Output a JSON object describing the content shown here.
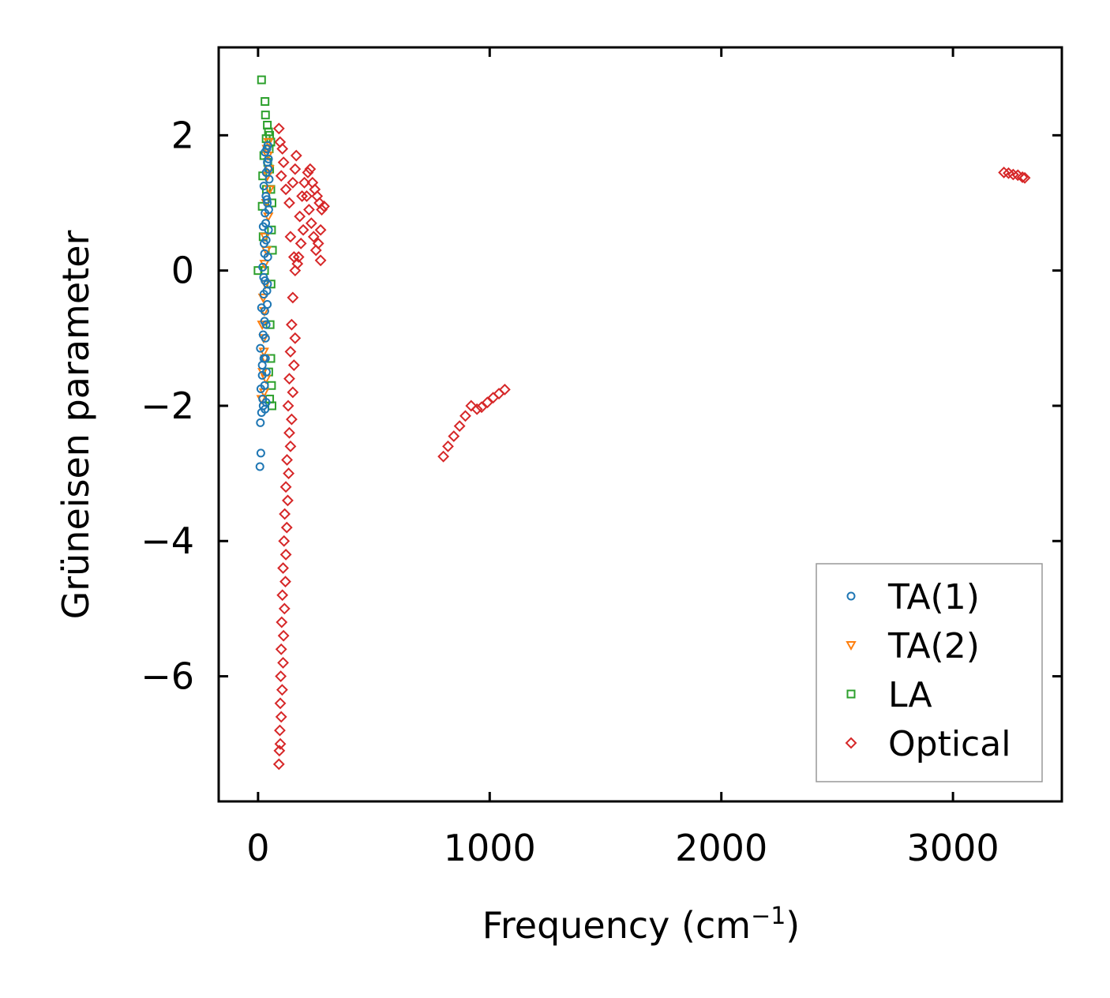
{
  "chart_data": {
    "type": "scatter",
    "title": "",
    "xlabel": "Frequency (cm",
    "xlabel_sup": "−1",
    "xlabel_close": ")",
    "ylabel": "Grüneisen parameter",
    "xlim": [
      -170,
      3470
    ],
    "ylim": [
      -7.85,
      3.3
    ],
    "xticks": [
      0,
      1000,
      2000,
      3000
    ],
    "xtick_labels": [
      "0",
      "1000",
      "2000",
      "3000"
    ],
    "yticks": [
      -6,
      -4,
      -2,
      0,
      2
    ],
    "ytick_labels": [
      "−6",
      "−4",
      "−2",
      "0",
      "2"
    ],
    "grid": false,
    "legend_position": "lower-right",
    "series": [
      {
        "name": "TA(1)",
        "marker": "circle",
        "color": "#1f77b4",
        "points": [
          [
            8,
            -2.9
          ],
          [
            12,
            -2.7
          ],
          [
            10,
            -2.25
          ],
          [
            15,
            -2.1
          ],
          [
            20,
            -1.9
          ],
          [
            12,
            -1.75
          ],
          [
            18,
            -1.55
          ],
          [
            25,
            -1.3
          ],
          [
            10,
            -1.15
          ],
          [
            22,
            -0.95
          ],
          [
            28,
            -0.75
          ],
          [
            15,
            -0.55
          ],
          [
            25,
            -0.35
          ],
          [
            30,
            -0.15
          ],
          [
            20,
            0.05
          ],
          [
            28,
            0.25
          ],
          [
            35,
            0.45
          ],
          [
            22,
            0.65
          ],
          [
            30,
            0.85
          ],
          [
            38,
            1.05
          ],
          [
            25,
            1.25
          ],
          [
            35,
            1.45
          ],
          [
            40,
            1.6
          ],
          [
            30,
            1.75
          ],
          [
            42,
            1.85
          ],
          [
            45,
            1.65
          ],
          [
            48,
            1.35
          ],
          [
            40,
            1.0
          ],
          [
            45,
            0.6
          ],
          [
            42,
            0.2
          ],
          [
            38,
            -0.3
          ],
          [
            35,
            -0.8
          ],
          [
            32,
            -1.3
          ],
          [
            28,
            -1.7
          ],
          [
            35,
            -1.95
          ],
          [
            30,
            -2.05
          ],
          [
            22,
            -2.0
          ],
          [
            18,
            -1.4
          ],
          [
            40,
            -0.5
          ],
          [
            46,
            0.9
          ],
          [
            34,
            1.1
          ],
          [
            26,
            0.4
          ],
          [
            24,
            -0.1
          ],
          [
            32,
            -1.0
          ],
          [
            36,
            -1.5
          ],
          [
            44,
            1.5
          ],
          [
            38,
            1.8
          ],
          [
            33,
            0.7
          ],
          [
            29,
            -0.6
          ],
          [
            41,
            -0.2
          ]
        ]
      },
      {
        "name": "TA(2)",
        "marker": "triangle-down",
        "color": "#ff7f0e",
        "points": [
          [
            15,
            -1.9
          ],
          [
            20,
            -1.5
          ],
          [
            25,
            -1.2
          ],
          [
            18,
            -0.8
          ],
          [
            22,
            -0.4
          ],
          [
            28,
            0.1
          ],
          [
            30,
            0.5
          ],
          [
            35,
            1.0
          ],
          [
            40,
            1.4
          ],
          [
            42,
            1.7
          ],
          [
            45,
            1.9
          ],
          [
            38,
            1.8
          ],
          [
            48,
            1.5
          ],
          [
            50,
            1.2
          ],
          [
            44,
            0.8
          ],
          [
            36,
            0.3
          ],
          [
            32,
            -0.2
          ],
          [
            27,
            -0.6
          ],
          [
            24,
            -1.0
          ],
          [
            30,
            -1.3
          ],
          [
            34,
            -1.6
          ],
          [
            26,
            -1.8
          ]
        ]
      },
      {
        "name": "LA",
        "marker": "square",
        "color": "#2ca02c",
        "points": [
          [
            15,
            2.82
          ],
          [
            30,
            2.5
          ],
          [
            32,
            2.3
          ],
          [
            40,
            2.15
          ],
          [
            45,
            2.05
          ],
          [
            50,
            2.0
          ],
          [
            55,
            1.9
          ],
          [
            35,
            1.95
          ],
          [
            25,
            1.7
          ],
          [
            20,
            1.4
          ],
          [
            18,
            0.95
          ],
          [
            22,
            0.5
          ],
          [
            28,
            0.0
          ],
          [
            50,
            1.5
          ],
          [
            55,
            1.2
          ],
          [
            60,
            1.0
          ],
          [
            58,
            0.6
          ],
          [
            62,
            0.3
          ],
          [
            56,
            -0.2
          ],
          [
            52,
            -0.8
          ],
          [
            55,
            -1.3
          ],
          [
            58,
            -1.7
          ],
          [
            60,
            -2.0
          ],
          [
            50,
            -1.9
          ],
          [
            46,
            -1.5
          ],
          [
            48,
            1.8
          ],
          [
            42,
            1.6
          ],
          [
            36,
            1.2
          ],
          [
            0,
            0.0
          ]
        ]
      },
      {
        "name": "Optical",
        "marker": "diamond",
        "color": "#d62728",
        "points": [
          [
            90,
            2.1
          ],
          [
            95,
            1.9
          ],
          [
            110,
            1.6
          ],
          [
            105,
            1.8
          ],
          [
            100,
            1.4
          ],
          [
            120,
            1.2
          ],
          [
            135,
            1.0
          ],
          [
            150,
            1.3
          ],
          [
            160,
            1.5
          ],
          [
            165,
            1.7
          ],
          [
            140,
            0.5
          ],
          [
            155,
            0.2
          ],
          [
            170,
            0.1
          ],
          [
            180,
            0.8
          ],
          [
            190,
            1.1
          ],
          [
            200,
            1.3
          ],
          [
            215,
            1.45
          ],
          [
            225,
            1.5
          ],
          [
            235,
            1.3
          ],
          [
            245,
            1.2
          ],
          [
            255,
            1.1
          ],
          [
            265,
            1.0
          ],
          [
            275,
            0.9
          ],
          [
            285,
            0.95
          ],
          [
            270,
            0.6
          ],
          [
            260,
            0.4
          ],
          [
            250,
            0.3
          ],
          [
            240,
            0.5
          ],
          [
            230,
            0.7
          ],
          [
            220,
            0.9
          ],
          [
            210,
            1.1
          ],
          [
            195,
            0.6
          ],
          [
            185,
            0.4
          ],
          [
            175,
            0.2
          ],
          [
            270,
            0.15
          ],
          [
            160,
            0.0
          ],
          [
            150,
            -0.4
          ],
          [
            145,
            -0.8
          ],
          [
            140,
            -1.2
          ],
          [
            135,
            -1.6
          ],
          [
            130,
            -2.0
          ],
          [
            135,
            -2.4
          ],
          [
            140,
            -2.6
          ],
          [
            145,
            -2.2
          ],
          [
            150,
            -1.8
          ],
          [
            155,
            -1.4
          ],
          [
            160,
            -1.0
          ],
          [
            125,
            -2.8
          ],
          [
            120,
            -3.2
          ],
          [
            115,
            -3.6
          ],
          [
            112,
            -4.0
          ],
          [
            108,
            -4.4
          ],
          [
            105,
            -4.8
          ],
          [
            102,
            -5.2
          ],
          [
            100,
            -5.6
          ],
          [
            98,
            -6.0
          ],
          [
            96,
            -6.4
          ],
          [
            94,
            -6.8
          ],
          [
            92,
            -7.1
          ],
          [
            90,
            -7.3
          ],
          [
            96,
            -7.0
          ],
          [
            100,
            -6.6
          ],
          [
            104,
            -6.2
          ],
          [
            108,
            -5.8
          ],
          [
            110,
            -5.4
          ],
          [
            114,
            -5.0
          ],
          [
            118,
            -4.6
          ],
          [
            120,
            -4.2
          ],
          [
            124,
            -3.8
          ],
          [
            128,
            -3.4
          ],
          [
            132,
            -3.0
          ],
          [
            800,
            -2.75
          ],
          [
            820,
            -2.6
          ],
          [
            845,
            -2.45
          ],
          [
            870,
            -2.3
          ],
          [
            895,
            -2.15
          ],
          [
            920,
            -2.0
          ],
          [
            945,
            -2.05
          ],
          [
            965,
            -2.02
          ],
          [
            990,
            -1.95
          ],
          [
            1015,
            -1.88
          ],
          [
            1040,
            -1.82
          ],
          [
            1065,
            -1.76
          ],
          [
            3220,
            1.45
          ],
          [
            3240,
            1.44
          ],
          [
            3260,
            1.42
          ],
          [
            3280,
            1.41
          ],
          [
            3300,
            1.38
          ],
          [
            3310,
            1.37
          ]
        ]
      }
    ]
  }
}
